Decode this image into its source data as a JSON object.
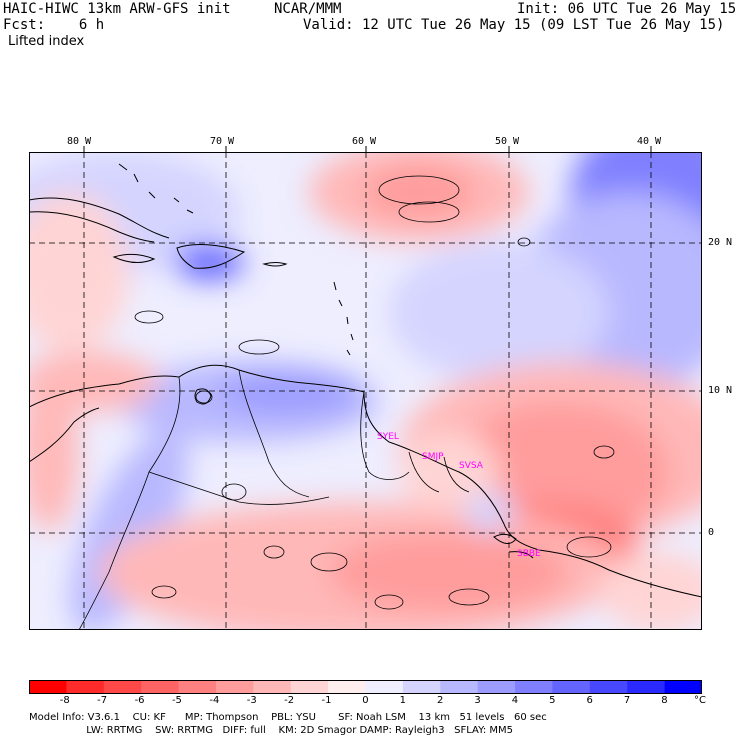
{
  "header": {
    "model": "HAIC-HIWC 13km ARW-GFS init",
    "org": "NCAR/MMM",
    "init": "Init: 06 UTC Tue 26 May 15",
    "fcst": "Fcst:    6 h",
    "valid": "Valid: 12 UTC Tue 26 May 15 (09 LST Tue 26 May 15)",
    "field": "Lifted index"
  },
  "map": {
    "lon_labels": [
      "80 W",
      "70 W",
      "60 W",
      "50 W",
      "40 W"
    ],
    "lat_labels": [
      "20 N",
      "10 N",
      "0"
    ],
    "cities": [
      "SYEL",
      "SMJP",
      "SVSA",
      "SBBE"
    ]
  },
  "colorbar": {
    "ticks": [
      "-8",
      "-7",
      "-6",
      "-5",
      "-4",
      "-3",
      "-2",
      "-1",
      "0",
      "1",
      "2",
      "3",
      "4",
      "5",
      "6",
      "7",
      "8"
    ],
    "unit": "°C",
    "colors": [
      "#ff0000",
      "#ff2a2a",
      "#ff4848",
      "#ff6464",
      "#ff8080",
      "#ff9c9c",
      "#ffb8b8",
      "#ffd4d4",
      "#ffeeee",
      "#eeeeff",
      "#d4d4ff",
      "#b8b8ff",
      "#9c9cff",
      "#8080ff",
      "#6464ff",
      "#4848ff",
      "#2a2aff",
      "#0000ff"
    ]
  },
  "footer": {
    "line1": "Model Info: V3.6.1    CU: KF      MP: Thompson    PBL: YSU       SF: Noah LSM    13 km   51 levels   60 sec",
    "line2": "                  LW: RRTMG    SW: RRTMG   DIFF: full    KM: 2D Smagor DAMP: Rayleigh3   SFLAY: MM5"
  }
}
